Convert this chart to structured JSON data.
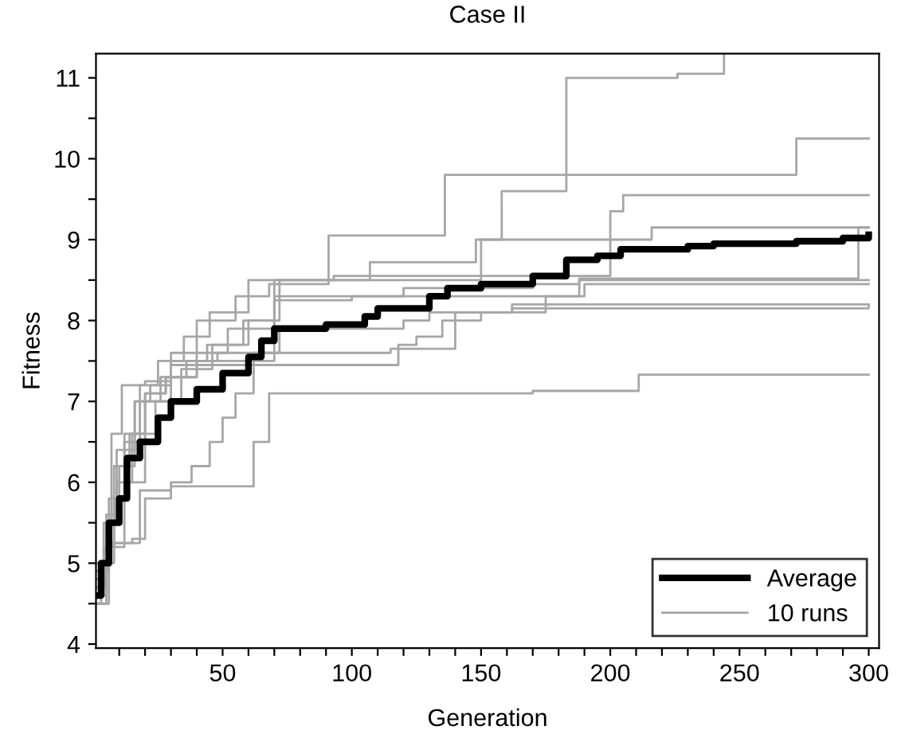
{
  "chart_data": {
    "type": "step",
    "title": "Case II",
    "xlabel": "Generation",
    "ylabel": "Fitness",
    "xlim": [
      1,
      304
    ],
    "ylim": [
      3.95,
      11.3
    ],
    "xticks": [
      {
        "value": 10,
        "label": null
      },
      {
        "value": 20,
        "label": null
      },
      {
        "value": 30,
        "label": null
      },
      {
        "value": 40,
        "label": null
      },
      50,
      {
        "value": 60,
        "label": null
      },
      {
        "value": 70,
        "label": null
      },
      {
        "value": 80,
        "label": null
      },
      {
        "value": 90,
        "label": null
      },
      100,
      {
        "value": 110,
        "label": null
      },
      {
        "value": 120,
        "label": null
      },
      {
        "value": 130,
        "label": null
      },
      {
        "value": 140,
        "label": null
      },
      150,
      {
        "value": 160,
        "label": null
      },
      {
        "value": 170,
        "label": null
      },
      {
        "value": 180,
        "label": null
      },
      {
        "value": 190,
        "label": null
      },
      200,
      {
        "value": 210,
        "label": null
      },
      {
        "value": 220,
        "label": null
      },
      {
        "value": 230,
        "label": null
      },
      {
        "value": 240,
        "label": null
      },
      250,
      {
        "value": 260,
        "label": null
      },
      {
        "value": 270,
        "label": null
      },
      {
        "value": 280,
        "label": null
      },
      {
        "value": 290,
        "label": null
      },
      300
    ],
    "yticks": [
      4,
      {
        "value": 4.5,
        "label": null
      },
      5,
      {
        "value": 5.5,
        "label": null
      },
      6,
      {
        "value": 6.5,
        "label": null
      },
      7,
      {
        "value": 7.5,
        "label": null
      },
      8,
      {
        "value": 8.5,
        "label": null
      },
      9,
      {
        "value": 9.5,
        "label": null
      },
      10,
      {
        "value": 10.5,
        "label": null
      },
      11
    ],
    "grid": false,
    "legend": "bottom right",
    "marker": "none",
    "line_style": "solid",
    "series": [
      {
        "name": "10 runs",
        "color": "#a6a6a6",
        "x": [
          1,
          4,
          8,
          12,
          18,
          25,
          35,
          45,
          60,
          107,
          148,
          158,
          183,
          226,
          244
        ],
        "values": [
          4.7,
          5.2,
          5.8,
          6.6,
          7.2,
          7.5,
          7.8,
          8.1,
          8.5,
          8.72,
          9.0,
          9.6,
          11.0,
          11.05,
          11.3
        ]
      },
      {
        "color": "#a6a6a6",
        "x": [
          1,
          5,
          10,
          16,
          22,
          30,
          40,
          55,
          68,
          91,
          136,
          272,
          300
        ],
        "values": [
          4.8,
          5.6,
          6.2,
          7.0,
          7.2,
          7.6,
          8.0,
          8.3,
          8.45,
          9.05,
          9.8,
          10.25,
          10.25
        ]
      },
      {
        "color": "#a6a6a6",
        "x": [
          1,
          3,
          7,
          11,
          20,
          30,
          44,
          60,
          72,
          150,
          200,
          205,
          300
        ],
        "values": [
          4.5,
          5.0,
          6.6,
          7.2,
          7.25,
          7.5,
          7.7,
          8.0,
          8.5,
          8.55,
          9.35,
          9.55,
          9.55
        ]
      },
      {
        "color": "#a6a6a6",
        "x": [
          1,
          4,
          8,
          14,
          20,
          28,
          40,
          52,
          70,
          93,
          150,
          216,
          300
        ],
        "values": [
          4.6,
          5.2,
          6.2,
          6.6,
          7.1,
          7.3,
          7.6,
          7.9,
          8.5,
          8.55,
          9.0,
          9.15,
          9.15
        ]
      },
      {
        "color": "#a6a6a6",
        "x": [
          1,
          6,
          12,
          18,
          26,
          36,
          48,
          70,
          120,
          170,
          188,
          296,
          300
        ],
        "values": [
          4.9,
          5.8,
          6.5,
          7.0,
          7.3,
          7.5,
          7.6,
          8.3,
          8.4,
          8.45,
          8.52,
          9.15,
          9.15
        ]
      },
      {
        "color": "#a6a6a6",
        "x": [
          1,
          5,
          9,
          15,
          24,
          34,
          46,
          58,
          70,
          100,
          190,
          300
        ],
        "values": [
          4.6,
          5.5,
          6.0,
          6.6,
          7.0,
          7.4,
          7.7,
          8.0,
          8.25,
          8.3,
          8.45,
          8.45
        ]
      },
      {
        "color": "#a6a6a6",
        "x": [
          1,
          6,
          12,
          20,
          28,
          40,
          62,
          72,
          120,
          130,
          162,
          300
        ],
        "values": [
          4.5,
          5.2,
          6.0,
          7.1,
          7.3,
          7.5,
          7.6,
          7.9,
          8.0,
          8.1,
          8.2,
          8.2
        ]
      },
      {
        "color": "#a6a6a6",
        "x": [
          1,
          4,
          9,
          16,
          30,
          118,
          125,
          135,
          150,
          175,
          188,
          300
        ],
        "values": [
          4.7,
          5.5,
          6.4,
          7.0,
          7.45,
          7.7,
          7.8,
          8.0,
          8.1,
          8.3,
          8.5,
          8.5
        ]
      },
      {
        "color": "#a6a6a6",
        "x": [
          1,
          8,
          18,
          30,
          38,
          45,
          50,
          55,
          62,
          70,
          115,
          140,
          162,
          300
        ],
        "values": [
          5.0,
          5.25,
          5.9,
          6.0,
          6.2,
          6.5,
          6.8,
          7.1,
          7.5,
          7.6,
          7.65,
          8.1,
          8.15,
          8.2
        ]
      },
      {
        "color": "#a6a6a6",
        "x": [
          1,
          5,
          15,
          20,
          30,
          62,
          68,
          170,
          211,
          300
        ],
        "values": [
          4.5,
          5.25,
          5.3,
          5.8,
          5.95,
          6.5,
          7.1,
          7.13,
          7.33,
          7.33
        ]
      },
      {
        "name": "Average",
        "color": "#000000",
        "x": [
          1,
          3,
          6,
          10,
          13,
          18,
          25,
          30,
          40,
          50,
          60,
          65,
          70,
          90,
          105,
          110,
          130,
          137,
          150,
          170,
          183,
          195,
          204,
          230,
          240,
          272,
          290,
          300
        ],
        "values": [
          4.6,
          5.0,
          5.5,
          5.8,
          6.3,
          6.5,
          6.8,
          7.0,
          7.15,
          7.35,
          7.55,
          7.75,
          7.9,
          7.95,
          8.05,
          8.15,
          8.3,
          8.4,
          8.45,
          8.55,
          8.75,
          8.8,
          8.88,
          8.92,
          8.95,
          8.98,
          9.02,
          9.06
        ]
      }
    ]
  }
}
